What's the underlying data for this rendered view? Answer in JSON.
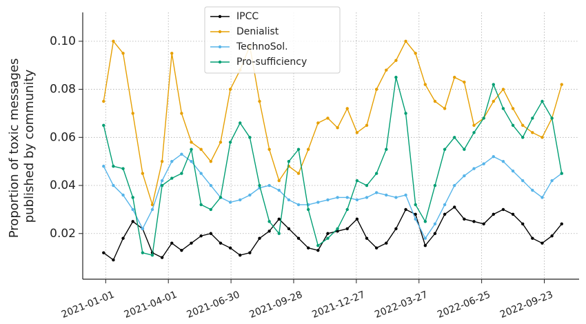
{
  "chart_data": {
    "type": "line",
    "ylabel": [
      "Proportion of toxic messages",
      "published by community"
    ],
    "x": [
      "2020-12-29",
      "2021-01-12",
      "2021-01-26",
      "2021-02-09",
      "2021-02-23",
      "2021-03-09",
      "2021-03-23",
      "2021-04-06",
      "2021-04-20",
      "2021-05-04",
      "2021-05-18",
      "2021-06-01",
      "2021-06-15",
      "2021-06-29",
      "2021-07-13",
      "2021-07-27",
      "2021-08-10",
      "2021-08-24",
      "2021-09-07",
      "2021-09-21",
      "2021-10-05",
      "2021-10-19",
      "2021-11-02",
      "2021-11-16",
      "2021-11-30",
      "2021-12-14",
      "2021-12-28",
      "2022-01-11",
      "2022-01-25",
      "2022-02-08",
      "2022-02-22",
      "2022-03-08",
      "2022-03-22",
      "2022-04-05",
      "2022-04-19",
      "2022-05-03",
      "2022-05-17",
      "2022-05-31",
      "2022-06-14",
      "2022-06-28",
      "2022-07-12",
      "2022-07-26",
      "2022-08-09",
      "2022-08-23",
      "2022-09-06",
      "2022-09-20",
      "2022-10-04",
      "2022-10-18"
    ],
    "series": [
      {
        "name": "IPCC",
        "color": "#000000",
        "values": [
          0.012,
          0.009,
          0.018,
          0.025,
          0.022,
          0.012,
          0.01,
          0.016,
          0.013,
          0.016,
          0.019,
          0.02,
          0.016,
          0.014,
          0.011,
          0.012,
          0.018,
          0.021,
          0.026,
          0.022,
          0.018,
          0.014,
          0.013,
          0.02,
          0.021,
          0.022,
          0.026,
          0.018,
          0.014,
          0.016,
          0.022,
          0.03,
          0.028,
          0.015,
          0.02,
          0.028,
          0.031,
          0.026,
          0.025,
          0.024,
          0.028,
          0.03,
          0.028,
          0.024,
          0.018,
          0.016,
          0.019,
          0.024
        ]
      },
      {
        "name": "Denialist",
        "color": "#e69f00",
        "values": [
          0.075,
          0.1,
          0.095,
          0.07,
          0.045,
          0.032,
          0.05,
          0.095,
          0.07,
          0.058,
          0.055,
          0.05,
          0.058,
          0.08,
          0.088,
          0.098,
          0.075,
          0.055,
          0.042,
          0.048,
          0.045,
          0.055,
          0.066,
          0.068,
          0.064,
          0.072,
          0.062,
          0.065,
          0.08,
          0.088,
          0.092,
          0.1,
          0.095,
          0.082,
          0.075,
          0.072,
          0.085,
          0.083,
          0.065,
          0.068,
          0.075,
          0.08,
          0.072,
          0.065,
          0.062,
          0.06,
          0.068,
          0.082
        ]
      },
      {
        "name": "TechnoSol.",
        "color": "#56b4e9",
        "values": [
          0.048,
          0.04,
          0.036,
          0.03,
          0.022,
          0.03,
          0.042,
          0.05,
          0.053,
          0.05,
          0.045,
          0.04,
          0.035,
          0.033,
          0.034,
          0.036,
          0.039,
          0.04,
          0.038,
          0.034,
          0.032,
          0.032,
          0.033,
          0.034,
          0.035,
          0.035,
          0.034,
          0.035,
          0.037,
          0.036,
          0.035,
          0.036,
          0.026,
          0.018,
          0.024,
          0.032,
          0.04,
          0.044,
          0.047,
          0.049,
          0.052,
          0.05,
          0.046,
          0.042,
          0.038,
          0.035,
          0.042,
          0.045
        ]
      },
      {
        "name": "Pro-sufficiency",
        "color": "#009e73",
        "values": [
          0.065,
          0.048,
          0.047,
          0.035,
          0.012,
          0.011,
          0.04,
          0.043,
          0.045,
          0.055,
          0.032,
          0.03,
          0.035,
          0.058,
          0.066,
          0.06,
          0.04,
          0.025,
          0.02,
          0.05,
          0.055,
          0.03,
          0.015,
          0.018,
          0.022,
          0.03,
          0.042,
          0.04,
          0.045,
          0.055,
          0.085,
          0.07,
          0.032,
          0.025,
          0.04,
          0.055,
          0.06,
          0.055,
          0.062,
          0.068,
          0.082,
          0.072,
          0.065,
          0.06,
          0.068,
          0.075,
          0.068,
          0.045
        ]
      }
    ],
    "xlim": [
      "2020-11-29",
      "2022-11-12"
    ],
    "xticks": [
      "2021-01-01",
      "2021-04-01",
      "2021-06-30",
      "2021-09-28",
      "2021-12-27",
      "2022-03-27",
      "2022-06-25",
      "2022-09-23"
    ],
    "ylim": [
      0.001,
      0.112
    ],
    "yticks": [
      0.02,
      0.04,
      0.06,
      0.08,
      {
        "value": 0.1,
        "label": "0.10"
      }
    ],
    "grid": true,
    "legend": "upper center"
  }
}
